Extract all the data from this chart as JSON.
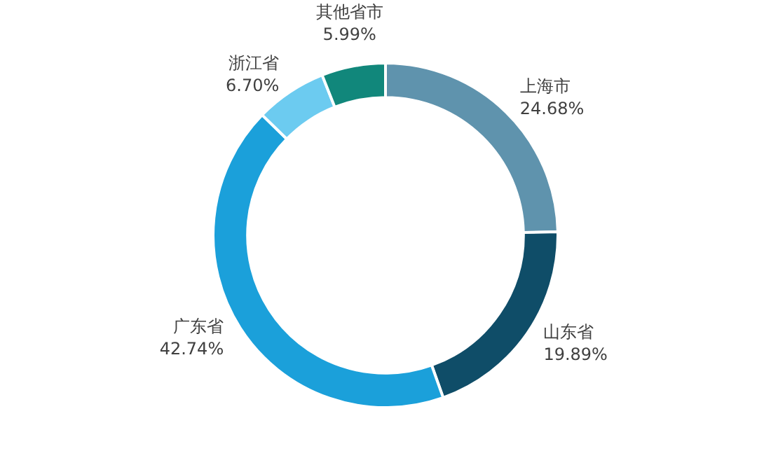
{
  "chart_data": {
    "type": "donut",
    "categories": [
      "上海市",
      "山东省",
      "广东省",
      "浙江省",
      "其他省市"
    ],
    "values": [
      24.68,
      19.89,
      42.74,
      6.7,
      5.99
    ],
    "value_labels": [
      "24.68%",
      "19.89%",
      "42.74%",
      "6.70%",
      "5.99%"
    ],
    "colors": [
      "#5f93ad",
      "#0f4d68",
      "#1ba0da",
      "#6ccbf0",
      "#11877b"
    ],
    "legend": false
  }
}
